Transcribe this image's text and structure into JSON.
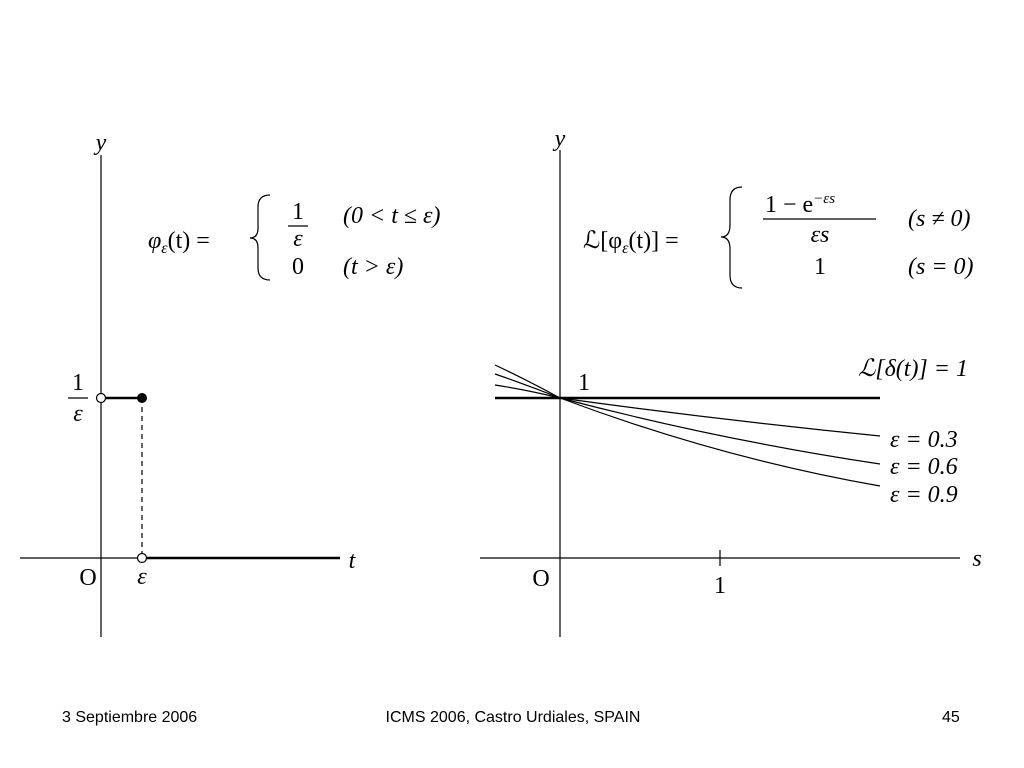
{
  "left_plot": {
    "y_axis_label": "y",
    "x_axis_label": "t",
    "origin_label": "O",
    "level_label": {
      "numerator": "1",
      "denominator": "ε"
    },
    "point_label": "ε",
    "formula": {
      "function": "φ",
      "subscript": "ε",
      "argument": "(t) =",
      "cases": [
        {
          "numerator": "1",
          "denominator": "ε",
          "condition": "(0 < t ≤ ε)"
        },
        {
          "value": "0",
          "condition": "(t > ε)"
        }
      ]
    }
  },
  "right_plot": {
    "y_axis_label": "y",
    "x_axis_label": "s",
    "origin_label": "O",
    "tick_label": "1",
    "level_label": "1",
    "delta_label": "ℒ[δ(t)] = 1",
    "curve_labels": [
      "ε = 0.3",
      "ε = 0.6",
      "ε = 0.9"
    ],
    "formula": {
      "prefix": "ℒ[φ",
      "subscript": "ε",
      "argument": "(t)] =",
      "cases": [
        {
          "numerator": "1 − e",
          "exponent": "−εs",
          "denominator": "εs",
          "condition": "(s ≠ 0)"
        },
        {
          "value": "1",
          "condition": "(s = 0)"
        }
      ]
    }
  },
  "footer": {
    "date": "3 Septiembre 2006",
    "event": "ICMS 2006, Castro Urdiales, SPAIN",
    "page": "45"
  }
}
